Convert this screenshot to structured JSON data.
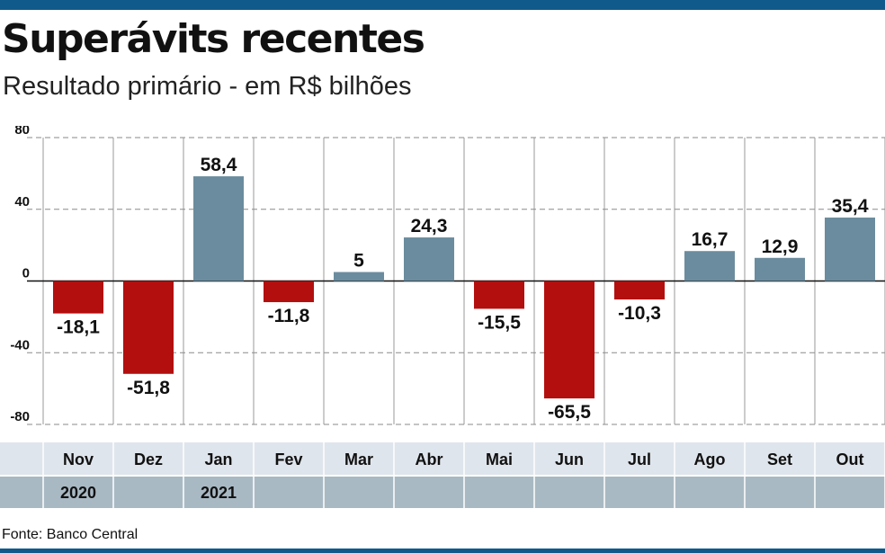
{
  "header": {
    "title": "Superávits recentes",
    "subtitle": "Resultado primário - em R$ bilhões"
  },
  "footer": {
    "source": "Fonte: Banco Central"
  },
  "chart_data": {
    "type": "bar",
    "title": "Superávits recentes",
    "subtitle": "Resultado primário - em R$ bilhões",
    "categories": [
      "Nov",
      "Dez",
      "Jan",
      "Fev",
      "Mar",
      "Abr",
      "Mai",
      "Jun",
      "Jul",
      "Ago",
      "Set",
      "Out"
    ],
    "years": [
      "2020",
      "",
      "2021",
      "",
      "",
      "",
      "",
      "",
      "",
      "",
      "",
      ""
    ],
    "values": [
      -18.1,
      -51.8,
      58.4,
      -11.8,
      5,
      24.3,
      -15.5,
      -65.5,
      -10.3,
      16.7,
      12.9,
      35.4
    ],
    "value_labels": [
      "-18,1",
      "-51,8",
      "58,4",
      "-11,8",
      "5",
      "24,3",
      "-15,5",
      "-65,5",
      "-10,3",
      "16,7",
      "12,9",
      "35,4"
    ],
    "yticks": [
      80,
      40,
      0,
      -40,
      -80
    ],
    "ylim": [
      -80,
      80
    ],
    "grid": true,
    "colors": {
      "positive": "#6b8c9e",
      "negative": "#b30f0f",
      "month_row": "#dfe5ec",
      "year_row": "#a9b9c4"
    }
  }
}
